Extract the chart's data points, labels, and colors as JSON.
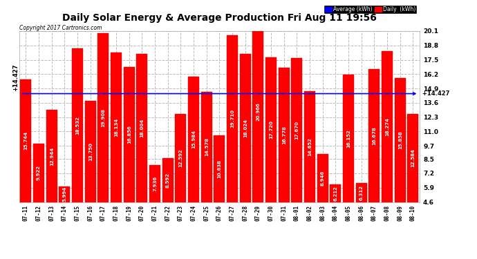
{
  "title": "Daily Solar Energy & Average Production Fri Aug 11 19:56",
  "copyright": "Copyright 2017 Cartronics.com",
  "categories": [
    "07-11",
    "07-12",
    "07-13",
    "07-14",
    "07-15",
    "07-16",
    "07-17",
    "07-18",
    "07-19",
    "07-20",
    "07-21",
    "07-22",
    "07-23",
    "07-24",
    "07-25",
    "07-26",
    "07-27",
    "07-28",
    "07-29",
    "07-30",
    "07-31",
    "08-01",
    "08-02",
    "08-03",
    "08-04",
    "08-05",
    "08-06",
    "08-07",
    "08-08",
    "08-09",
    "08-10"
  ],
  "values": [
    15.744,
    9.922,
    12.944,
    5.994,
    18.532,
    13.75,
    19.908,
    18.134,
    16.856,
    18.004,
    7.936,
    8.592,
    12.592,
    15.984,
    14.578,
    10.638,
    19.71,
    18.024,
    20.966,
    17.72,
    16.778,
    17.67,
    14.652,
    8.946,
    6.212,
    16.152,
    6.312,
    16.678,
    18.274,
    15.858,
    12.584
  ],
  "average": 14.427,
  "bar_color": "#ff0000",
  "average_line_color": "#0000ff",
  "ylim": [
    4.6,
    20.1
  ],
  "yticks": [
    4.6,
    5.9,
    7.2,
    8.5,
    9.7,
    11.0,
    12.3,
    13.6,
    14.9,
    16.2,
    17.5,
    18.8,
    20.1
  ],
  "bg_color": "#ffffff",
  "grid_color": "#bbbbbb",
  "value_label_color": "#ffffff",
  "value_label_fontsize": 5.0,
  "avg_label": "14.427",
  "legend_avg_text": "Average (kWh)",
  "legend_daily_text": "Daily  (kWh)"
}
